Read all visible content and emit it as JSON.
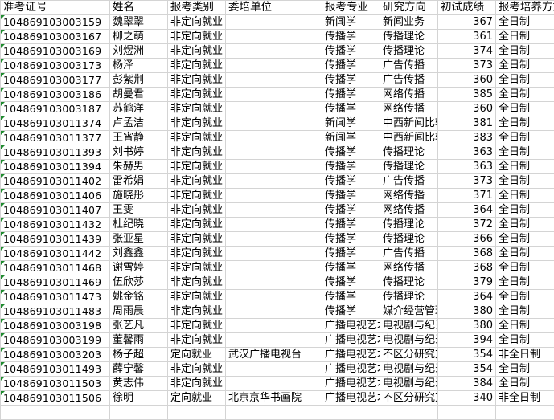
{
  "headers": [
    "准考证号",
    "姓名",
    "报考类别",
    "委培单位",
    "报考专业",
    "研究方向",
    "初试成绩",
    "报考培养方式"
  ],
  "rows": [
    [
      "104869103003159",
      "魏翠翠",
      "非定向就业",
      "",
      "新闻学",
      "新闻业务",
      "367",
      "全日制"
    ],
    [
      "104869103003167",
      "柳之萌",
      "非定向就业",
      "",
      "传播学",
      "传播理论",
      "361",
      "全日制"
    ],
    [
      "104869103003169",
      "刘煜洲",
      "非定向就业",
      "",
      "传播学",
      "传播理论",
      "374",
      "全日制"
    ],
    [
      "104869103003173",
      "杨泽",
      "非定向就业",
      "",
      "传播学",
      "广告传播",
      "373",
      "全日制"
    ],
    [
      "104869103003177",
      "彭紫荆",
      "非定向就业",
      "",
      "传播学",
      "广告传播",
      "360",
      "全日制"
    ],
    [
      "104869103003186",
      "胡曼君",
      "非定向就业",
      "",
      "传播学",
      "网络传播",
      "385",
      "全日制"
    ],
    [
      "104869103003187",
      "苏鹤洋",
      "非定向就业",
      "",
      "传播学",
      "网络传播",
      "360",
      "全日制"
    ],
    [
      "104869103011374",
      "卢孟洁",
      "非定向就业",
      "",
      "新闻学",
      "中西新闻比较",
      "381",
      "全日制"
    ],
    [
      "104869103011377",
      "王宵静",
      "非定向就业",
      "",
      "新闻学",
      "中西新闻比较",
      "383",
      "全日制"
    ],
    [
      "104869103011393",
      "刘书婷",
      "非定向就业",
      "",
      "传播学",
      "传播理论",
      "363",
      "全日制"
    ],
    [
      "104869103011394",
      "朱赫男",
      "非定向就业",
      "",
      "传播学",
      "传播理论",
      "363",
      "全日制"
    ],
    [
      "104869103011402",
      "雷希娟",
      "非定向就业",
      "",
      "传播学",
      "广告传播",
      "373",
      "全日制"
    ],
    [
      "104869103011406",
      "施晓彤",
      "非定向就业",
      "",
      "传播学",
      "网络传播",
      "371",
      "全日制"
    ],
    [
      "104869103011407",
      "王雯",
      "非定向就业",
      "",
      "传播学",
      "网络传播",
      "364",
      "全日制"
    ],
    [
      "104869103011432",
      "杜纪晓",
      "非定向就业",
      "",
      "传播学",
      "传播理论",
      "372",
      "全日制"
    ],
    [
      "104869103011439",
      "张亚星",
      "非定向就业",
      "",
      "传播学",
      "传播理论",
      "366",
      "全日制"
    ],
    [
      "104869103011442",
      "刘鑫鑫",
      "非定向就业",
      "",
      "传播学",
      "广告传播",
      "368",
      "全日制"
    ],
    [
      "104869103011468",
      "谢雪婷",
      "非定向就业",
      "",
      "传播学",
      "网络传播",
      "368",
      "全日制"
    ],
    [
      "104869103011469",
      "伍欣莎",
      "非定向就业",
      "",
      "传播学",
      "传播理论",
      "379",
      "全日制"
    ],
    [
      "104869103011473",
      "姚金铭",
      "非定向就业",
      "",
      "传播学",
      "传播理论",
      "364",
      "全日制"
    ],
    [
      "104869103011483",
      "周雨晨",
      "非定向就业",
      "",
      "传播学",
      "媒介经营管理",
      "380",
      "全日制"
    ],
    [
      "104869103003198",
      "张艺凡",
      "非定向就业",
      "",
      "广播电视艺术学",
      "电视剧与纪录片",
      "380",
      "全日制"
    ],
    [
      "104869103003199",
      "董馨雨",
      "非定向就业",
      "",
      "广播电视艺术学",
      "电视剧与纪录片",
      "394",
      "全日制"
    ],
    [
      "104869103003203",
      "杨子超",
      "定向就业",
      "武汉广播电视台",
      "广播电视艺术学",
      "不区分研究方向",
      "354",
      "非全日制"
    ],
    [
      "104869103011493",
      "薛宁馨",
      "非定向就业",
      "",
      "广播电视艺术学",
      "电视剧与纪录片",
      "354",
      "全日制"
    ],
    [
      "104869103011503",
      "黄志伟",
      "非定向就业",
      "",
      "广播电视艺术学",
      "电视剧与纪录片",
      "384",
      "全日制"
    ],
    [
      "104869103011506",
      "徐明",
      "定向就业",
      "北京京华书画院",
      "广播电视艺术学",
      "不区分研究方向",
      "340",
      "非全日制"
    ]
  ]
}
